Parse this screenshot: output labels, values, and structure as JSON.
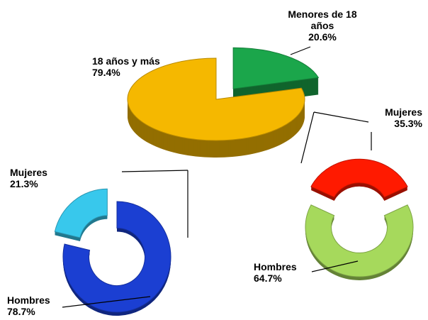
{
  "chart_data": [
    {
      "type": "pie3d",
      "categories": [
        "Menores de 18 años",
        "18 años y más"
      ],
      "values": [
        20.6,
        79.4
      ],
      "value_labels": [
        "20.6%",
        "79.4%"
      ],
      "colors": [
        "#1ba64b",
        "#f5b800"
      ]
    },
    {
      "type": "donut",
      "categories": [
        "Mujeres",
        "Hombres"
      ],
      "values": [
        21.3,
        78.7
      ],
      "value_labels": [
        "21.3%",
        "78.7%"
      ],
      "colors": [
        "#38c8ec",
        "#1b3fd2"
      ]
    },
    {
      "type": "donut",
      "categories": [
        "Mujeres",
        "Hombres"
      ],
      "values": [
        35.3,
        64.7
      ],
      "value_labels": [
        "35.3%",
        "64.7%"
      ],
      "colors": [
        "#ff1a00",
        "#a6d95c"
      ]
    }
  ]
}
